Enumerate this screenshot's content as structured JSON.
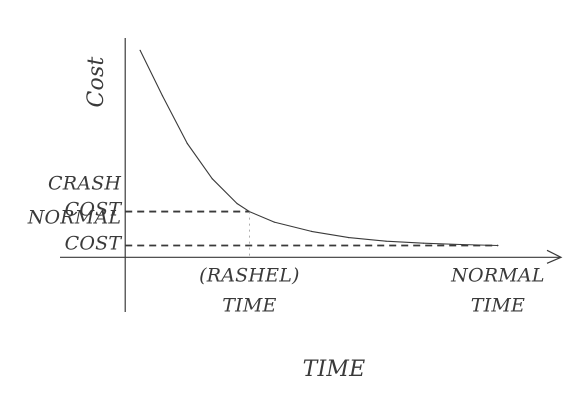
{
  "chart_data": {
    "type": "line",
    "title": "",
    "xlabel": "TIME",
    "ylabel": "Cost",
    "series": [
      {
        "values": [
          {
            "x": 0.12,
            "y": 1.0
          },
          {
            "x": 0.3,
            "y": 0.78
          },
          {
            "x": 0.5,
            "y": 0.55
          },
          {
            "x": 0.7,
            "y": 0.38
          },
          {
            "x": 0.9,
            "y": 0.26
          },
          {
            "x": 1.0,
            "y": 0.221
          },
          {
            "x": 1.2,
            "y": 0.17
          },
          {
            "x": 1.5,
            "y": 0.125
          },
          {
            "x": 1.8,
            "y": 0.095
          },
          {
            "x": 2.1,
            "y": 0.078
          },
          {
            "x": 2.4,
            "y": 0.068
          },
          {
            "x": 2.7,
            "y": 0.062
          },
          {
            "x": 3.0,
            "y": 0.057
          }
        ]
      }
    ],
    "x_ticks": [
      {
        "x": 1.0,
        "lines": [
          "(RASHEL)",
          "TIME"
        ]
      },
      {
        "x": 3.0,
        "lines": [
          "NORMAL",
          "TIME"
        ]
      }
    ],
    "y_ticks": [
      {
        "y": 0.221,
        "lines": [
          "CRASH",
          "COST"
        ]
      },
      {
        "y": 0.057,
        "lines": [
          "NORMAL",
          "COST"
        ]
      }
    ],
    "xlim": [
      -0.05,
      3.5
    ],
    "ylim": [
      -0.1,
      1.05
    ],
    "grid": false,
    "legend": "none",
    "colors": {
      "ink": "#3a3a3a",
      "background": "#ffffff"
    }
  }
}
